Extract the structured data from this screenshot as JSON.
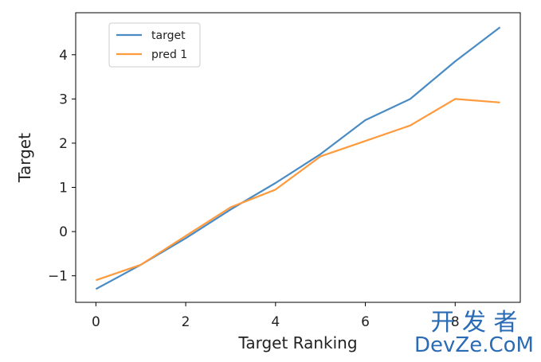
{
  "chart_data": {
    "type": "line",
    "title": "",
    "xlabel": "Target Ranking",
    "ylabel": "Target",
    "xlim": [
      -0.45,
      9.45
    ],
    "ylim": [
      -1.6,
      4.95
    ],
    "xticks": [
      0,
      2,
      4,
      6,
      8
    ],
    "yticks": [
      -1,
      0,
      1,
      2,
      3,
      4
    ],
    "legend_position": "top-left",
    "grid": false,
    "x": [
      0,
      1,
      2,
      3,
      4,
      5,
      6,
      7,
      8,
      9
    ],
    "series": [
      {
        "name": "target",
        "color": "#4a8bc4",
        "values": [
          -1.3,
          -0.75,
          -0.15,
          0.5,
          1.1,
          1.75,
          2.52,
          3.0,
          3.85,
          4.62
        ]
      },
      {
        "name": "pred 1",
        "color": "#ff9a3c",
        "values": [
          -1.1,
          -0.75,
          -0.1,
          0.55,
          0.95,
          1.7,
          2.05,
          2.4,
          3.0,
          2.92
        ]
      }
    ]
  },
  "watermark": {
    "line1": "开 发 者",
    "line2": "DevZe.CoM"
  }
}
